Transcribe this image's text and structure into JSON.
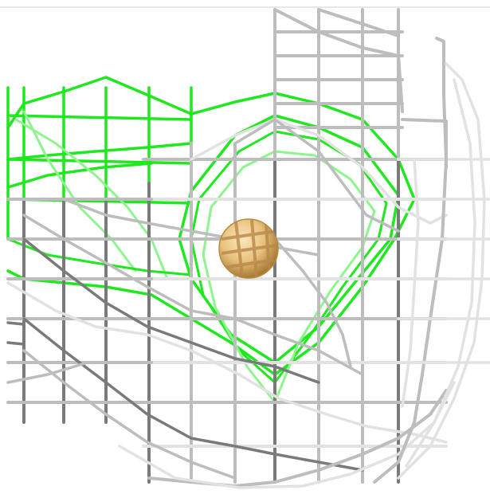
{
  "viewer": {
    "background": "#ffffff",
    "mesh_colors": {
      "gray_light": "#e2e2e2",
      "gray_mid": "#bdbdbd",
      "gray_dark": "#7a7a7a",
      "green_bright": "#1fe81f",
      "green_light": "#8ef58e"
    },
    "ligand": {
      "icon": "sphere-ligand-icon",
      "color": "#e9c27e",
      "shade": "#b88a40"
    }
  }
}
